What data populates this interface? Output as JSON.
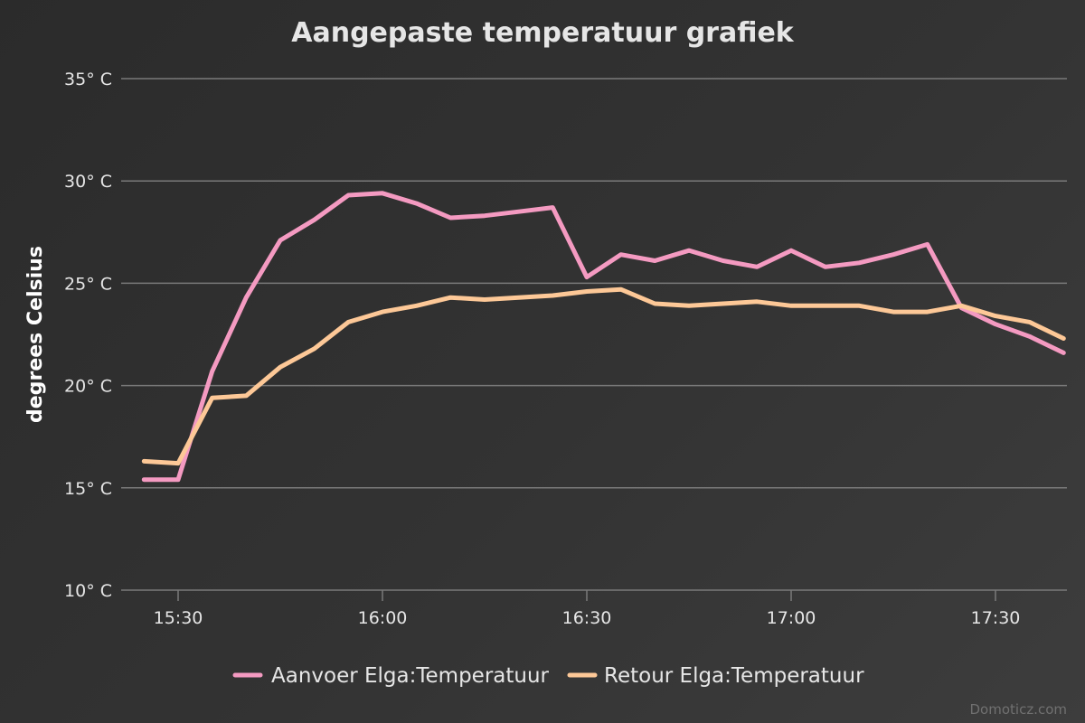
{
  "chart_data": {
    "type": "line",
    "title": "Aangepaste temperatuur grafiek",
    "ylabel": "degrees Celsius",
    "xlabel": "",
    "ylim": [
      10,
      35
    ],
    "y_ticks": [
      10,
      15,
      20,
      25,
      30,
      35
    ],
    "y_tick_labels": [
      "10° C",
      "15° C",
      "20° C",
      "25° C",
      "30° C",
      "35° C"
    ],
    "x_range": [
      "15:25",
      "17:40"
    ],
    "x_tick_labels": [
      "15:30",
      "16:00",
      "16:30",
      "17:00",
      "17:30"
    ],
    "grid": true,
    "legend_position": "bottom-center",
    "x": [
      "15:25",
      "15:30",
      "15:35",
      "15:40",
      "15:45",
      "15:50",
      "15:55",
      "16:00",
      "16:05",
      "16:10",
      "16:15",
      "16:20",
      "16:25",
      "16:30",
      "16:35",
      "16:40",
      "16:45",
      "16:50",
      "16:55",
      "17:00",
      "17:05",
      "17:10",
      "17:15",
      "17:20",
      "17:25",
      "17:30",
      "17:35",
      "17:40"
    ],
    "series": [
      {
        "name": "Aanvoer Elga:Temperatuur",
        "color": "#f49ac1",
        "values": [
          15.4,
          15.4,
          20.7,
          24.3,
          27.1,
          28.1,
          29.3,
          29.4,
          28.9,
          28.2,
          28.3,
          28.5,
          28.7,
          25.3,
          26.4,
          26.1,
          26.6,
          26.1,
          25.8,
          26.6,
          25.8,
          26.0,
          26.4,
          26.9,
          23.8,
          23.0,
          22.4,
          21.6
        ]
      },
      {
        "name": "Retour Elga:Temperatuur",
        "color": "#fdc897",
        "values": [
          16.3,
          16.2,
          19.4,
          19.5,
          20.9,
          21.8,
          23.1,
          23.6,
          23.9,
          24.3,
          24.2,
          24.3,
          24.4,
          24.6,
          24.7,
          24.0,
          23.9,
          24.0,
          24.1,
          23.9,
          23.9,
          23.9,
          23.6,
          23.6,
          23.9,
          23.4,
          23.1,
          22.3
        ]
      }
    ]
  },
  "credits": "Domoticz.com"
}
